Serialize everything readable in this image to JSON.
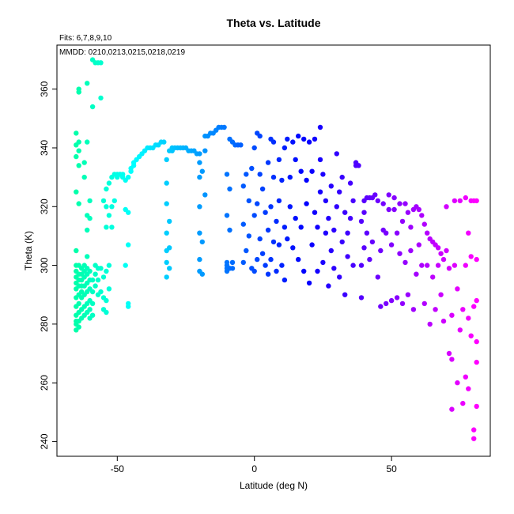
{
  "chart_data": {
    "type": "scatter",
    "title": "Theta vs. Latitude",
    "annotations": {
      "fits": "Fits: 6,7,8,9,10",
      "mmdd": "MMDD: 0210,0213,0215,0218,0219"
    },
    "xlabel": "Latitude (deg N)",
    "ylabel": "Theta (K)",
    "xlim": [
      -72,
      86
    ],
    "ylim": [
      235,
      375
    ],
    "xticks": [
      -50,
      0,
      50
    ],
    "yticks": [
      240,
      260,
      280,
      300,
      320,
      340,
      360
    ],
    "colormap": {
      "lat_min": -65,
      "lat_max": 81,
      "start_hue": 160,
      "end_hue": 300
    },
    "grid": false,
    "series": [
      {
        "x": [
          -65,
          -65,
          -65,
          -65,
          -65,
          -65,
          -65,
          -65,
          -65,
          -65,
          -65,
          -65,
          -65,
          -65,
          -65,
          -65,
          -64,
          -64,
          -64,
          -64,
          -64,
          -64,
          -64,
          -64,
          -64,
          -64,
          -64,
          -64,
          -64,
          -64,
          -64,
          -64
        ],
        "y": [
          278,
          280,
          281,
          283,
          286,
          289,
          292,
          294,
          296,
          298,
          300,
          305,
          325,
          337,
          341,
          345,
          279,
          281,
          284,
          287,
          290,
          293,
          295,
          297,
          300,
          321,
          334,
          339,
          342,
          359,
          359,
          360
        ]
      },
      {
        "x": [
          -63,
          -63,
          -63,
          -63,
          -63,
          -63,
          -63,
          -63,
          -62,
          -62,
          -62,
          -62,
          -62,
          -62,
          -62,
          -62,
          -62,
          -61,
          -61,
          -61,
          -61,
          -61,
          -61,
          -61,
          -61,
          -61,
          -61,
          -61,
          -60,
          -60,
          -60,
          -60
        ],
        "y": [
          282,
          285,
          289,
          291,
          293,
          295,
          297,
          299,
          283,
          286,
          290,
          293,
          296,
          298,
          300,
          330,
          335,
          284,
          287,
          291,
          294,
          297,
          299,
          303,
          312,
          317,
          342,
          362,
          282,
          285,
          288,
          292
        ]
      },
      {
        "x": [
          -60,
          -60,
          -60,
          -60,
          -59,
          -59,
          -59,
          -59,
          -59,
          -59,
          -58,
          -58,
          -58,
          -58,
          -57,
          -57,
          -57,
          -57,
          -56,
          -56,
          -56,
          -56,
          -55,
          -55,
          -55,
          -55,
          -54,
          -54,
          -54,
          -54,
          -54,
          -54
        ],
        "y": [
          295,
          298,
          316,
          322,
          283,
          287,
          291,
          295,
          354,
          370,
          293,
          297,
          300,
          369,
          290,
          295,
          299,
          369,
          291,
          299,
          357,
          369,
          285,
          289,
          296,
          322,
          284,
          288,
          298,
          313,
          320,
          326
        ]
      },
      {
        "x": [
          -53,
          -53,
          -53,
          -53,
          -52,
          -52,
          -52,
          -51,
          -51,
          -50,
          -50,
          -49,
          -49,
          -48,
          -48,
          -47,
          -47,
          -47,
          -46,
          -46,
          -46,
          -46,
          -46,
          -45,
          -45,
          -44,
          -44,
          -43,
          -42,
          -41,
          -40,
          -39
        ],
        "y": [
          292,
          300,
          317,
          328,
          313,
          320,
          330,
          322,
          331,
          330,
          331,
          331,
          331,
          330,
          331,
          329,
          319,
          300,
          286,
          287,
          307,
          318,
          330,
          332,
          333,
          334,
          335,
          336,
          337,
          338,
          339,
          340
        ]
      },
      {
        "x": [
          -38,
          -37,
          -36,
          -35,
          -34,
          -33,
          -32,
          -32,
          -32,
          -32,
          -32,
          -32,
          -32,
          -31,
          -31,
          -31,
          -31,
          -30,
          -30,
          -29,
          -28,
          -27,
          -26,
          -25,
          -24,
          -23,
          -22,
          -21,
          -20,
          -20,
          -20,
          -20
        ],
        "y": [
          340,
          340,
          341,
          341,
          342,
          342,
          296,
          301,
          305,
          311,
          321,
          328,
          336,
          299,
          306,
          315,
          339,
          339,
          340,
          340,
          340,
          340,
          340,
          340,
          339,
          339,
          339,
          338,
          298,
          302,
          311,
          320
        ]
      },
      {
        "x": [
          -20,
          -20,
          -20,
          -19,
          -19,
          -19,
          -18,
          -18,
          -18,
          -17,
          -16,
          -15,
          -14,
          -13,
          -12,
          -11,
          -10,
          -10,
          -10,
          -10,
          -10,
          -10,
          -9,
          -9,
          -9,
          -9,
          -8,
          -8,
          -8,
          -7,
          -6,
          -5
        ],
        "y": [
          330,
          335,
          338,
          297,
          308,
          332,
          324,
          339,
          344,
          344,
          345,
          345,
          346,
          347,
          347,
          347,
          298,
          299,
          300,
          301,
          317,
          331,
          299,
          312,
          326,
          343,
          299,
          301,
          342,
          341,
          341,
          341
        ]
      },
      {
        "x": [
          -4,
          -4,
          -4,
          -3,
          -3,
          -2,
          -2,
          -1,
          -1,
          0,
          0,
          0,
          1,
          1,
          1,
          2,
          2,
          2,
          3,
          3,
          4,
          4,
          5,
          5,
          5,
          6,
          6,
          6,
          7,
          7,
          7,
          8
        ],
        "y": [
          301,
          314,
          327,
          305,
          331,
          310,
          322,
          299,
          333,
          298,
          317,
          340,
          302,
          321,
          345,
          309,
          331,
          344,
          304,
          326,
          300,
          318,
          297,
          312,
          335,
          302,
          320,
          343,
          308,
          330,
          342,
          298
        ]
      },
      {
        "x": [
          8,
          9,
          9,
          9,
          10,
          10,
          11,
          11,
          11,
          12,
          12,
          13,
          13,
          14,
          14,
          15,
          15,
          16,
          16,
          17,
          17,
          18,
          18,
          19,
          19,
          20,
          20,
          21,
          21,
          22,
          22,
          23
        ],
        "y": [
          315,
          336,
          307,
          322,
          300,
          329,
          313,
          340,
          295,
          309,
          343,
          320,
          330,
          306,
          342,
          316,
          336,
          302,
          344,
          313,
          332,
          298,
          343,
          321,
          329,
          294,
          342,
          307,
          332,
          318,
          343,
          298
        ]
      },
      {
        "x": [
          23,
          24,
          24,
          24,
          25,
          25,
          26,
          26,
          27,
          27,
          28,
          28,
          29,
          29,
          30,
          30,
          31,
          31,
          32,
          32,
          33,
          33,
          34,
          34,
          35,
          35,
          36,
          36,
          37,
          37,
          38,
          39
        ],
        "y": [
          313,
          347,
          325,
          336,
          301,
          331,
          311,
          322,
          293,
          316,
          305,
          327,
          299,
          312,
          320,
          338,
          296,
          325,
          308,
          330,
          290,
          318,
          303,
          311,
          316,
          328,
          300,
          322,
          334,
          335,
          334,
          289
        ]
      },
      {
        "x": [
          39,
          39,
          40,
          40,
          40,
          41,
          41,
          42,
          42,
          43,
          43,
          44,
          45,
          45,
          46,
          46,
          47,
          47,
          48,
          48,
          49,
          49,
          50,
          50,
          51,
          51,
          52,
          52,
          53,
          53,
          54,
          54
        ],
        "y": [
          300,
          315,
          306,
          318,
          322,
          311,
          323,
          302,
          323,
          308,
          323,
          324,
          296,
          322,
          286,
          305,
          312,
          321,
          287,
          311,
          319,
          324,
          288,
          307,
          319,
          323,
          289,
          311,
          304,
          321,
          287,
          315
        ]
      },
      {
        "x": [
          55,
          55,
          56,
          56,
          57,
          57,
          58,
          58,
          59,
          59,
          60,
          60,
          61,
          61,
          62,
          62,
          63,
          63,
          64,
          64,
          65,
          65,
          66,
          66,
          67,
          67,
          68,
          68,
          69,
          69,
          70,
          70
        ],
        "y": [
          301,
          321,
          290,
          318,
          305,
          313,
          285,
          319,
          297,
          320,
          307,
          319,
          300,
          317,
          287,
          314,
          300,
          311,
          280,
          309,
          296,
          308,
          285,
          307,
          300,
          306,
          290,
          304,
          281,
          302,
          305,
          320
        ]
      },
      {
        "x": [
          71,
          71,
          72,
          72,
          72,
          73,
          73,
          74,
          74,
          75,
          75,
          76,
          76,
          77,
          77,
          77,
          78,
          78,
          78,
          79,
          79,
          79,
          80,
          80,
          80,
          80,
          81,
          81,
          81,
          81,
          81,
          81
        ],
        "y": [
          270,
          299,
          251,
          268,
          283,
          300,
          322,
          260,
          292,
          278,
          322,
          253,
          285,
          262,
          300,
          323,
          258,
          282,
          311,
          276,
          303,
          322,
          241,
          244,
          286,
          322,
          252,
          267,
          274,
          288,
          302,
          322
        ]
      }
    ]
  }
}
